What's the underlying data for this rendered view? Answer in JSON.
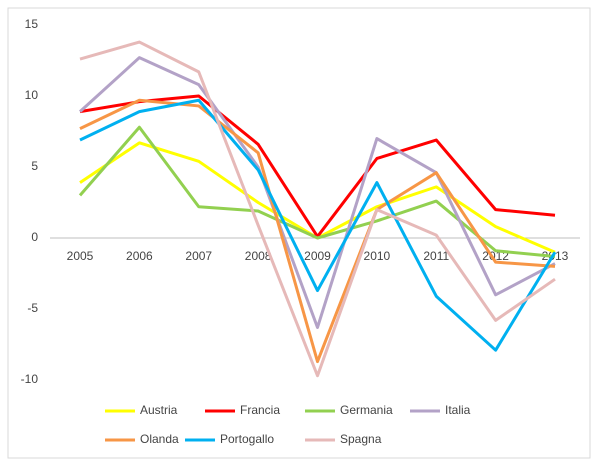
{
  "chart_data": {
    "type": "line",
    "categories": [
      "2005",
      "2006",
      "2007",
      "2008",
      "2009",
      "2010",
      "2011",
      "2012",
      "2013"
    ],
    "series": [
      {
        "name": "Austria",
        "color": "#ffff00",
        "values": [
          3.9,
          6.7,
          5.4,
          2.5,
          0.0,
          2.2,
          3.6,
          0.8,
          -1.0
        ]
      },
      {
        "name": "Francia",
        "color": "#ff0000",
        "values": [
          8.9,
          9.6,
          10.0,
          6.6,
          0.1,
          5.6,
          6.9,
          2.0,
          1.6
        ]
      },
      {
        "name": "Germania",
        "color": "#92d050",
        "values": [
          3.0,
          7.8,
          2.2,
          1.9,
          0.0,
          1.2,
          2.6,
          -0.9,
          -1.3
        ]
      },
      {
        "name": "Italia",
        "color": "#b3a2c7",
        "values": [
          8.9,
          12.7,
          10.8,
          5.0,
          -6.3,
          7.0,
          4.6,
          -4.0,
          -1.8
        ]
      },
      {
        "name": "Olanda",
        "color": "#f79646",
        "values": [
          7.7,
          9.7,
          9.3,
          6.0,
          -8.7,
          2.0,
          4.6,
          -1.7,
          -2.0
        ]
      },
      {
        "name": "Portogallo",
        "color": "#00b0f0",
        "values": [
          6.9,
          8.9,
          9.7,
          4.8,
          -3.7,
          3.9,
          -4.1,
          -7.9,
          -1.0
        ]
      },
      {
        "name": "Spagna",
        "color": "#e6b9b8",
        "values": [
          12.6,
          13.8,
          11.7,
          0.9,
          -9.7,
          2.0,
          0.2,
          -5.8,
          -2.9
        ]
      }
    ],
    "ylim": [
      -10,
      15
    ],
    "yticks": [
      -10,
      -5,
      0,
      5,
      10,
      15
    ],
    "grid": false,
    "legend": "bottom"
  }
}
